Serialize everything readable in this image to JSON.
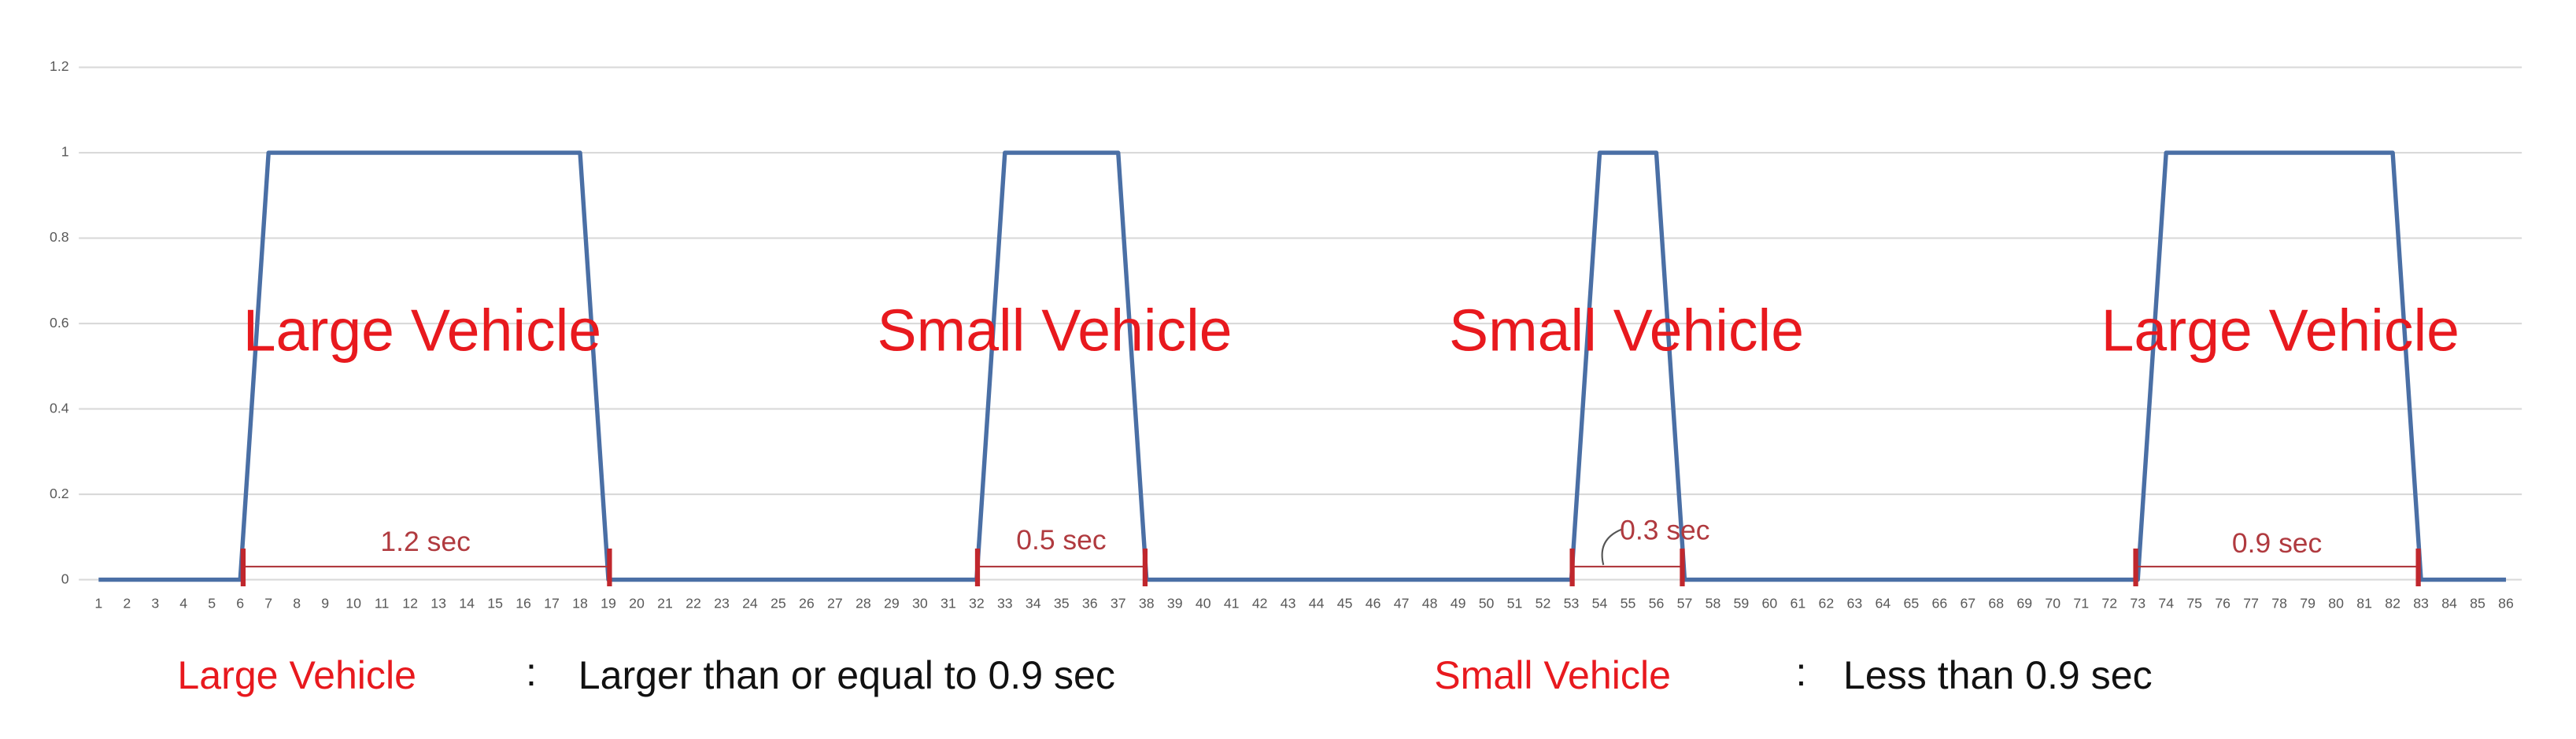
{
  "chart_data": {
    "type": "line",
    "categories": [
      1,
      2,
      3,
      4,
      5,
      6,
      7,
      8,
      9,
      10,
      11,
      12,
      13,
      14,
      15,
      16,
      17,
      18,
      19,
      20,
      21,
      22,
      23,
      24,
      25,
      26,
      27,
      28,
      29,
      30,
      31,
      32,
      33,
      34,
      35,
      36,
      37,
      38,
      39,
      40,
      41,
      42,
      43,
      44,
      45,
      46,
      47,
      48,
      49,
      50,
      51,
      52,
      53,
      54,
      55,
      56,
      57,
      58,
      59,
      60,
      61,
      62,
      63,
      64,
      65,
      66,
      67,
      68,
      69,
      70,
      71,
      72,
      73,
      74,
      75,
      76,
      77,
      78,
      79,
      80,
      81,
      82,
      83,
      84,
      85,
      86
    ],
    "values": [
      0,
      0,
      0,
      0,
      0,
      0,
      1,
      1,
      1,
      1,
      1,
      1,
      1,
      1,
      1,
      1,
      1,
      1,
      0,
      0,
      0,
      0,
      0,
      0,
      0,
      0,
      0,
      0,
      0,
      0,
      0,
      0,
      1,
      1,
      1,
      1,
      1,
      0,
      0,
      0,
      0,
      0,
      0,
      0,
      0,
      0,
      0,
      0,
      0,
      0,
      0,
      0,
      0,
      1,
      1,
      1,
      0,
      0,
      0,
      0,
      0,
      0,
      0,
      0,
      0,
      0,
      0,
      0,
      0,
      0,
      0,
      0,
      0,
      1,
      1,
      1,
      1,
      1,
      1,
      1,
      1,
      1,
      0,
      0,
      0,
      0
    ],
    "color": "#4a6fa5",
    "ylim": [
      0,
      1.2
    ],
    "yticks": [
      0,
      0.2,
      0.4,
      0.6,
      0.8,
      1,
      1.2
    ],
    "grid": true,
    "annotations": [
      "Large Vehicle",
      "Small Vehicle",
      "Small Vehicle",
      "Large Vehicle"
    ],
    "intervals": [
      "1.2 sec",
      "0.5 sec",
      "0.3 sec",
      "0.9 sec"
    ],
    "notes": [
      {
        "label": "Large Vehicle",
        "separator": ":",
        "text": "Larger than or equal to 0.9 sec"
      },
      {
        "label": "Small Vehicle",
        "separator": ":",
        "text": "Less than 0.9 sec"
      }
    ]
  }
}
